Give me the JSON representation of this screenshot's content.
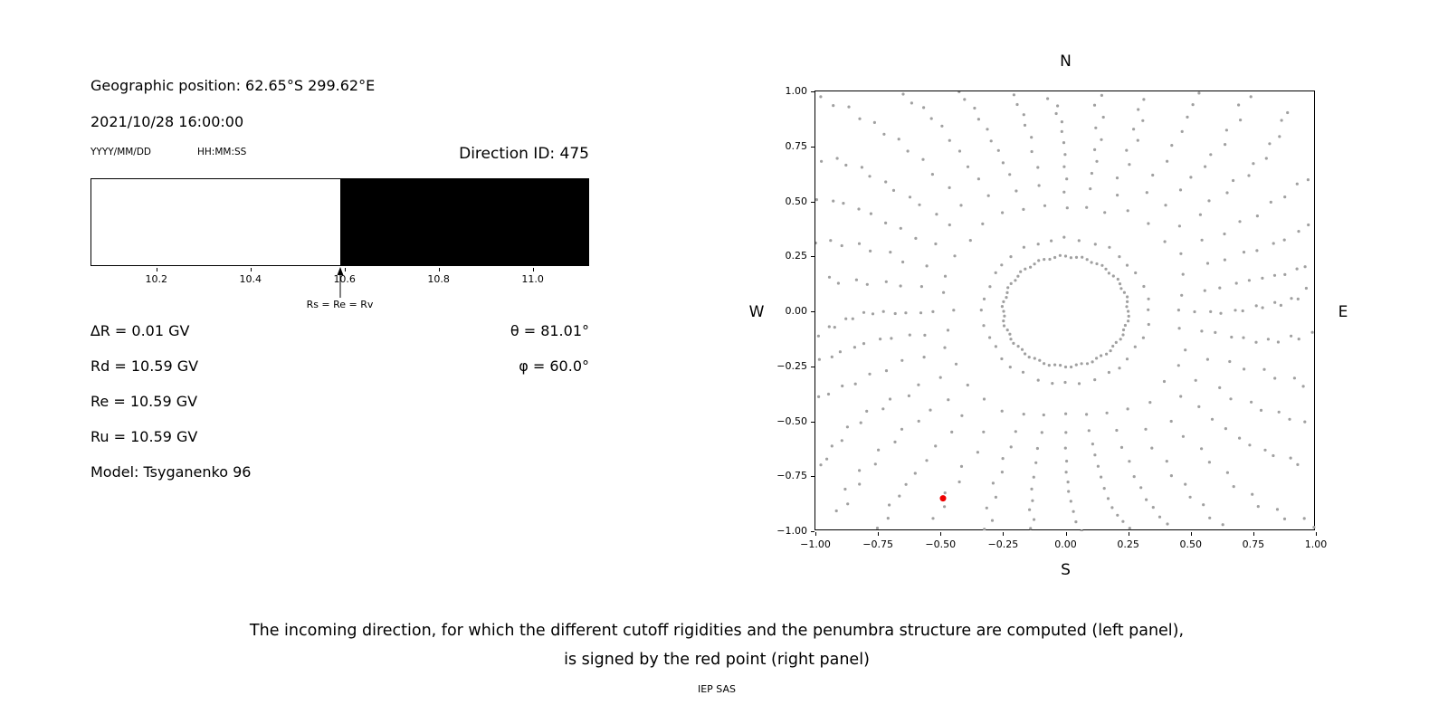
{
  "header": {
    "geo_position": "Geographic position: 62.65°S 299.62°E",
    "datetime": "2021/10/28 16:00:00",
    "date_format_label": "YYYY/MM/DD",
    "time_format_label": "HH:MM:SS",
    "direction_id": "Direction ID: 475"
  },
  "left_panel": {
    "delta_r": "∆R = 0.01 GV",
    "rd": "Rd = 10.59 GV",
    "re": "Re = 10.59 GV",
    "ru": "Ru = 10.59 GV",
    "model": "Model: Tsyganenko 96",
    "theta": "θ = 81.01°",
    "phi": "φ = 60.0°"
  },
  "caption": {
    "line1": "The incoming direction, for which the different cutoff rigidities and the penumbra structure are computed (left panel),",
    "line2": "is signed by the red point (right panel)",
    "credit": "IEP SAS"
  },
  "chart_data": [
    {
      "type": "bar",
      "name": "penumbra-structure",
      "x_range": [
        10.06,
        11.12
      ],
      "ticks": [
        10.2,
        10.4,
        10.6,
        10.8,
        11.0
      ],
      "tick_labels": [
        "10.2",
        "10.4",
        "10.6",
        "10.8",
        "11.0"
      ],
      "segments": [
        {
          "from": 10.06,
          "to": 10.59,
          "color": "#ffffff"
        },
        {
          "from": 10.59,
          "to": 11.12,
          "color": "#000000"
        }
      ],
      "arrow": {
        "x": 10.59,
        "label": "Rs = Re = Rv"
      }
    },
    {
      "type": "scatter",
      "name": "incoming-directions-map",
      "xlim": [
        -1,
        1
      ],
      "ylim": [
        -1,
        1
      ],
      "x_ticks": [
        -1,
        -0.75,
        -0.5,
        -0.25,
        0,
        0.25,
        0.5,
        0.75,
        1
      ],
      "x_tick_labels": [
        "−1.00",
        "−0.75",
        "−0.50",
        "−0.25",
        "0.00",
        "0.25",
        "0.50",
        "0.75",
        "1.00"
      ],
      "y_ticks": [
        1,
        0.75,
        0.5,
        0.25,
        0,
        -0.25,
        -0.5,
        -0.75,
        -1
      ],
      "y_tick_labels": [
        "1.00",
        "0.75",
        "0.50",
        "0.25",
        "0.00",
        "−0.25",
        "−0.50",
        "−0.75",
        "−1.00"
      ],
      "compass": {
        "top": "N",
        "bottom": "S",
        "left": "W",
        "right": "E"
      },
      "dot_color": "#a0a0a0",
      "pattern": {
        "inner_ring": {
          "radius": 0.25,
          "dots": 72
        },
        "spokes": {
          "count": 36,
          "angle_step_deg": 10,
          "r_start": 0.33,
          "r_max_base": 1.05,
          "r_max_diag_boost": 0.3,
          "dots_per_spoke": 14,
          "density_exponent": 0.65,
          "curl": 0.1
        }
      },
      "red_point": {
        "x": -0.49,
        "y": -0.85,
        "color": "#ee0000"
      }
    }
  ]
}
